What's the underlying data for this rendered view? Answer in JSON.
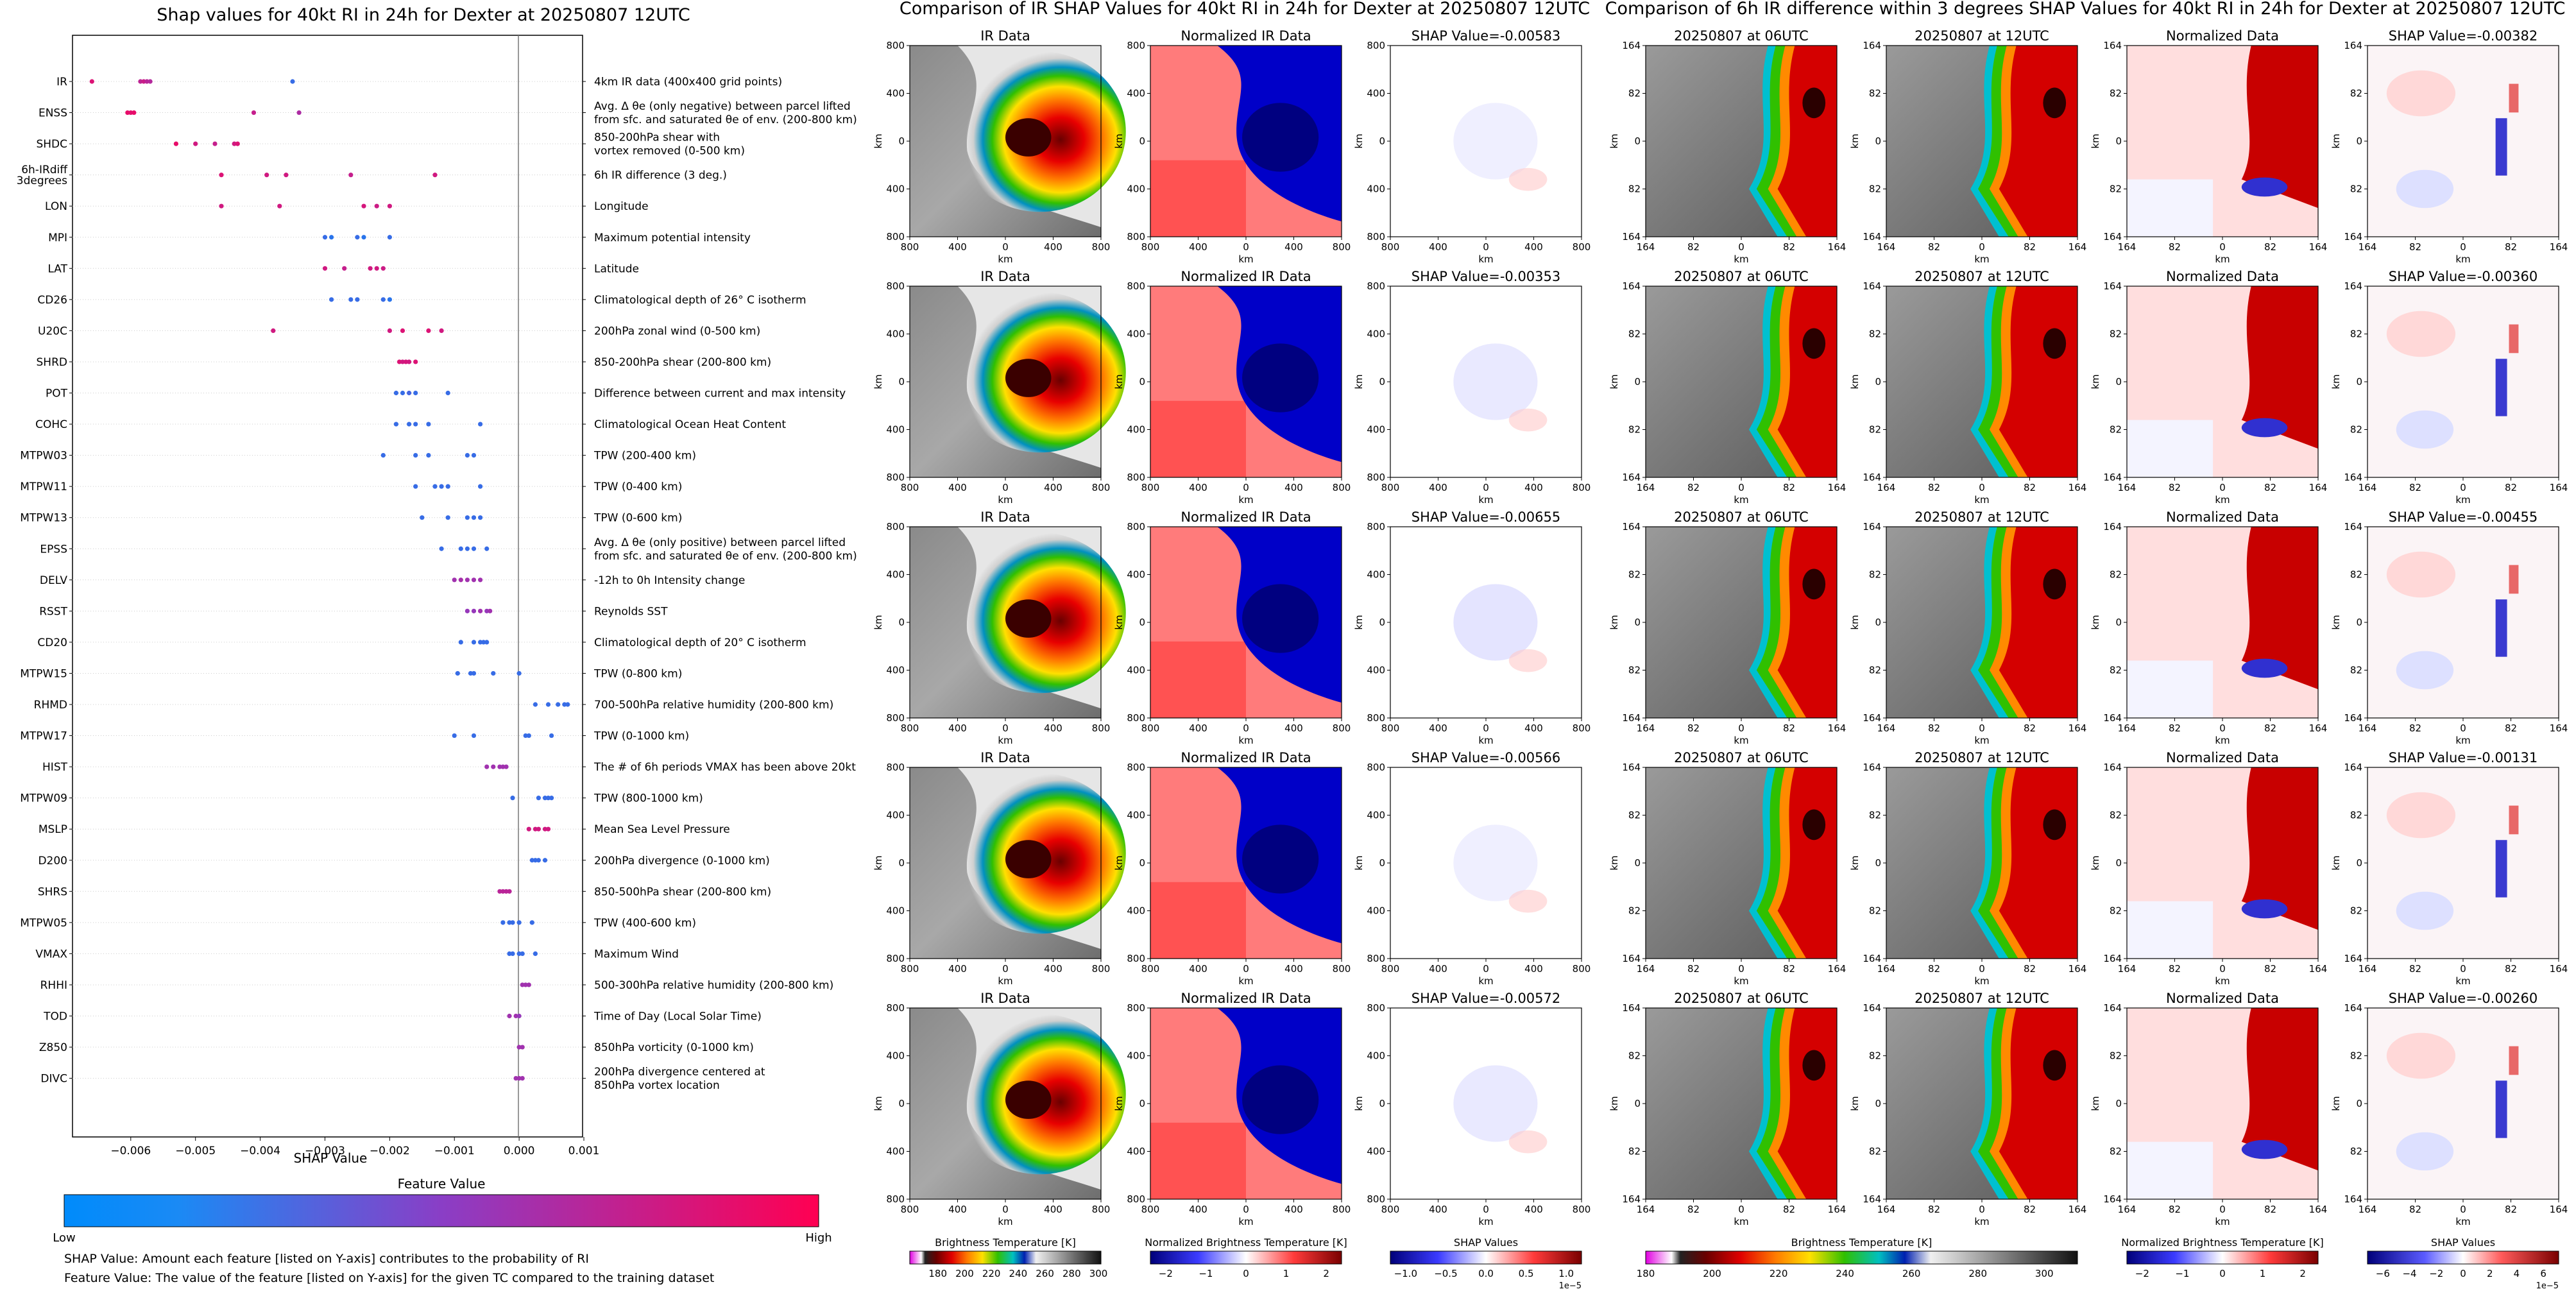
{
  "shap": {
    "title": "Shap values for 40kt RI in 24h for Dexter at 20250807 12UTC",
    "xlabel": "SHAP Value",
    "ticks": [
      "−0.006",
      "−0.005",
      "−0.004",
      "−0.003",
      "−0.002",
      "−0.001",
      "0.000",
      "0.001"
    ],
    "features": [
      {
        "name": "IR",
        "desc": "4km IR data (400x400 grid points)",
        "pts": [
          [
            -0.0066,
            0.85
          ],
          [
            -0.00585,
            0.72
          ],
          [
            -0.0058,
            0.77
          ],
          [
            -0.00575,
            0.7
          ],
          [
            -0.0057,
            0.68
          ],
          [
            -0.0035,
            0.2
          ]
        ]
      },
      {
        "name": "ENSS",
        "desc": "Avg. Δ θe (only negative) between parcel lifted\nfrom sfc. and saturated θe of env. (200-800 km)",
        "pts": [
          [
            -0.00605,
            0.9
          ],
          [
            -0.006,
            0.88
          ],
          [
            -0.00595,
            0.9
          ],
          [
            -0.0041,
            0.75
          ],
          [
            -0.0034,
            0.65
          ]
        ]
      },
      {
        "name": "SHDC",
        "desc": "850-200hPa shear with\nvortex removed (0-500 km)",
        "pts": [
          [
            -0.0053,
            0.9
          ],
          [
            -0.005,
            0.8
          ],
          [
            -0.0047,
            0.75
          ],
          [
            -0.0044,
            0.8
          ],
          [
            -0.00435,
            0.85
          ]
        ]
      },
      {
        "name": "6h-IRdiff\n3degrees",
        "desc": "6h IR difference (3 deg.)",
        "pts": [
          [
            -0.0046,
            0.85
          ],
          [
            -0.0039,
            0.8
          ],
          [
            -0.0036,
            0.8
          ],
          [
            -0.0026,
            0.75
          ],
          [
            -0.0013,
            0.8
          ]
        ]
      },
      {
        "name": "LON",
        "desc": "Longitude",
        "pts": [
          [
            -0.0046,
            0.8
          ],
          [
            -0.0037,
            0.8
          ],
          [
            -0.0024,
            0.82
          ],
          [
            -0.0022,
            0.78
          ],
          [
            -0.002,
            0.8
          ]
        ]
      },
      {
        "name": "MPI",
        "desc": "Maximum potential intensity",
        "pts": [
          [
            -0.003,
            0.2
          ],
          [
            -0.0029,
            0.15
          ],
          [
            -0.0025,
            0.2
          ],
          [
            -0.0024,
            0.15
          ],
          [
            -0.002,
            0.2
          ]
        ]
      },
      {
        "name": "LAT",
        "desc": "Latitude",
        "pts": [
          [
            -0.003,
            0.8
          ],
          [
            -0.0027,
            0.75
          ],
          [
            -0.0023,
            0.8
          ],
          [
            -0.0022,
            0.8
          ],
          [
            -0.0021,
            0.78
          ]
        ]
      },
      {
        "name": "CD26",
        "desc": "Climatological depth of 26° C isotherm",
        "pts": [
          [
            -0.0029,
            0.2
          ],
          [
            -0.0026,
            0.2
          ],
          [
            -0.0025,
            0.2
          ],
          [
            -0.0021,
            0.2
          ],
          [
            -0.002,
            0.15
          ]
        ]
      },
      {
        "name": "U20C",
        "desc": "200hPa zonal wind (0-500 km)",
        "pts": [
          [
            -0.0038,
            0.8
          ],
          [
            -0.002,
            0.8
          ],
          [
            -0.0018,
            0.85
          ],
          [
            -0.0014,
            0.85
          ],
          [
            -0.0012,
            0.8
          ]
        ]
      },
      {
        "name": "SHRD",
        "desc": "850-200hPa shear (200-800 km)",
        "pts": [
          [
            -0.00185,
            0.85
          ],
          [
            -0.0018,
            0.8
          ],
          [
            -0.00175,
            0.82
          ],
          [
            -0.0017,
            0.8
          ],
          [
            -0.0016,
            0.85
          ]
        ]
      },
      {
        "name": "POT",
        "desc": "Difference between current and max intensity",
        "pts": [
          [
            -0.0019,
            0.2
          ],
          [
            -0.0018,
            0.2
          ],
          [
            -0.0017,
            0.25
          ],
          [
            -0.0016,
            0.2
          ],
          [
            -0.0011,
            0.2
          ]
        ]
      },
      {
        "name": "COHC",
        "desc": "Climatological Ocean Heat Content",
        "pts": [
          [
            -0.0019,
            0.2
          ],
          [
            -0.0017,
            0.2
          ],
          [
            -0.0016,
            0.2
          ],
          [
            -0.0014,
            0.2
          ],
          [
            -0.0006,
            0.2
          ]
        ]
      },
      {
        "name": "MTPW03",
        "desc": "TPW (200-400 km)",
        "pts": [
          [
            -0.0021,
            0.2
          ],
          [
            -0.0016,
            0.2
          ],
          [
            -0.0014,
            0.2
          ],
          [
            -0.0008,
            0.2
          ],
          [
            -0.0007,
            0.2
          ]
        ]
      },
      {
        "name": "MTPW11",
        "desc": "TPW (0-400 km)",
        "pts": [
          [
            -0.0016,
            0.2
          ],
          [
            -0.0013,
            0.2
          ],
          [
            -0.0012,
            0.2
          ],
          [
            -0.0011,
            0.2
          ],
          [
            -0.0006,
            0.2
          ]
        ]
      },
      {
        "name": "MTPW13",
        "desc": "TPW (0-600 km)",
        "pts": [
          [
            -0.0015,
            0.2
          ],
          [
            -0.0011,
            0.2
          ],
          [
            -0.0008,
            0.2
          ],
          [
            -0.0007,
            0.2
          ],
          [
            -0.0006,
            0.2
          ]
        ]
      },
      {
        "name": "EPSS",
        "desc": "Avg. Δ θe (only positive) between parcel lifted\nfrom sfc. and saturated θe of env. (200-800 km)",
        "pts": [
          [
            -0.0012,
            0.2
          ],
          [
            -0.0009,
            0.2
          ],
          [
            -0.0008,
            0.2
          ],
          [
            -0.0007,
            0.2
          ],
          [
            -0.0005,
            0.2
          ]
        ]
      },
      {
        "name": "DELV",
        "desc": "-12h to 0h Intensity change",
        "pts": [
          [
            -0.001,
            0.6
          ],
          [
            -0.0009,
            0.62
          ],
          [
            -0.0008,
            0.6
          ],
          [
            -0.0007,
            0.6
          ],
          [
            -0.0006,
            0.6
          ]
        ]
      },
      {
        "name": "RSST",
        "desc": "Reynolds SST",
        "pts": [
          [
            -0.0008,
            0.55
          ],
          [
            -0.0007,
            0.55
          ],
          [
            -0.0006,
            0.6
          ],
          [
            -0.0005,
            0.55
          ],
          [
            -0.00045,
            0.6
          ]
        ]
      },
      {
        "name": "CD20",
        "desc": "Climatological depth of 20° C isotherm",
        "pts": [
          [
            -0.0009,
            0.2
          ],
          [
            -0.0007,
            0.2
          ],
          [
            -0.0006,
            0.2
          ],
          [
            -0.00055,
            0.2
          ],
          [
            -0.0005,
            0.2
          ]
        ]
      },
      {
        "name": "MTPW15",
        "desc": "TPW (0-800 km)",
        "pts": [
          [
            -0.00095,
            0.2
          ],
          [
            -0.00075,
            0.2
          ],
          [
            -0.0007,
            0.2
          ],
          [
            -0.0004,
            0.2
          ],
          [
            0.0,
            0.2
          ]
        ]
      },
      {
        "name": "RHMD",
        "desc": "700-500hPa relative humidity (200-800 km)",
        "pts": [
          [
            0.00025,
            0.2
          ],
          [
            0.00045,
            0.2
          ],
          [
            0.0006,
            0.2
          ],
          [
            0.0007,
            0.2
          ],
          [
            0.00075,
            0.2
          ]
        ]
      },
      {
        "name": "MTPW17",
        "desc": "TPW (0-1000 km)",
        "pts": [
          [
            -0.001,
            0.2
          ],
          [
            -0.0007,
            0.2
          ],
          [
            0.0001,
            0.2
          ],
          [
            0.00015,
            0.2
          ],
          [
            0.0005,
            0.2
          ]
        ]
      },
      {
        "name": "HIST",
        "desc": "The # of 6h periods VMAX has been above 20kt",
        "pts": [
          [
            -0.0005,
            0.6
          ],
          [
            -0.0004,
            0.6
          ],
          [
            -0.0003,
            0.6
          ],
          [
            -0.00025,
            0.6
          ],
          [
            -0.0002,
            0.6
          ]
        ]
      },
      {
        "name": "MTPW09",
        "desc": "TPW (800-1000 km)",
        "pts": [
          [
            -0.0001,
            0.2
          ],
          [
            0.0003,
            0.2
          ],
          [
            0.0004,
            0.2
          ],
          [
            0.00045,
            0.2
          ],
          [
            0.0005,
            0.2
          ]
        ]
      },
      {
        "name": "MSLP",
        "desc": "Mean Sea Level Pressure",
        "pts": [
          [
            0.00015,
            0.8
          ],
          [
            0.00025,
            0.8
          ],
          [
            0.0003,
            0.8
          ],
          [
            0.0004,
            0.8
          ],
          [
            0.00045,
            0.8
          ]
        ]
      },
      {
        "name": "D200",
        "desc": "200hPa divergence (0-1000 km)",
        "pts": [
          [
            0.0002,
            0.2
          ],
          [
            0.00025,
            0.2
          ],
          [
            0.0003,
            0.2
          ],
          [
            0.0004,
            0.2
          ]
        ]
      },
      {
        "name": "SHRS",
        "desc": "850-500hPa shear (200-800 km)",
        "pts": [
          [
            -0.0003,
            0.7
          ],
          [
            -0.00025,
            0.7
          ],
          [
            -0.0002,
            0.7
          ],
          [
            -0.00015,
            0.7
          ]
        ]
      },
      {
        "name": "MTPW05",
        "desc": "TPW (400-600 km)",
        "pts": [
          [
            -0.00025,
            0.2
          ],
          [
            -0.00015,
            0.2
          ],
          [
            -0.0001,
            0.2
          ],
          [
            0.0,
            0.2
          ],
          [
            0.0002,
            0.2
          ]
        ]
      },
      {
        "name": "VMAX",
        "desc": "Maximum Wind",
        "pts": [
          [
            -0.00015,
            0.2
          ],
          [
            -0.0001,
            0.2
          ],
          [
            0.0,
            0.2
          ],
          [
            5e-05,
            0.2
          ],
          [
            0.00025,
            0.2
          ]
        ]
      },
      {
        "name": "RHHI",
        "desc": "500-300hPa relative humidity (200-800 km)",
        "pts": [
          [
            5e-05,
            0.6
          ],
          [
            0.0001,
            0.6
          ],
          [
            0.00015,
            0.6
          ]
        ]
      },
      {
        "name": "TOD",
        "desc": "Time of Day (Local Solar Time)",
        "pts": [
          [
            -0.00015,
            0.6
          ],
          [
            -5e-05,
            0.6
          ],
          [
            0.0,
            0.55
          ]
        ]
      },
      {
        "name": "Z850",
        "desc": "850hPa vorticity (0-1000 km)",
        "pts": [
          [
            0.0,
            0.6
          ],
          [
            5e-05,
            0.6
          ]
        ]
      },
      {
        "name": "DIVC",
        "desc": "200hPa divergence centered at\n850hPa vortex location",
        "pts": [
          [
            -5e-05,
            0.6
          ],
          [
            0.0,
            0.6
          ],
          [
            5e-05,
            0.6
          ]
        ]
      }
    ],
    "colorbar_title": "Feature Value",
    "low": "Low",
    "high": "High",
    "note1": "SHAP Value: Amount each feature [listed on Y-axis] contributes to the probability of RI",
    "note2": "Feature Value: The value of the feature [listed on Y-axis] for the given TC compared to the training dataset"
  },
  "ir_panel": {
    "title": "Comparison of IR SHAP Values for 40kt RI in 24h for Dexter at 20250807 12UTC",
    "col_titles": [
      "IR Data",
      "Normalized IR Data",
      "SHAP Value=-0.00583"
    ],
    "shap_titles": [
      "SHAP Value=-0.00583",
      "SHAP Value=-0.00353",
      "SHAP Value=-0.00655",
      "SHAP Value=-0.00566",
      "SHAP Value=-0.00572"
    ],
    "ir_title": "IR Data",
    "norm_title": "Normalized IR Data",
    "ticks": [
      "800",
      "400",
      "0",
      "400",
      "800"
    ],
    "axis": "km",
    "cbar": [
      {
        "label": "Brightness Temperature [K]",
        "ticks": [
          "180",
          "200",
          "220",
          "240",
          "260",
          "280",
          "300"
        ]
      },
      {
        "label": "Normalized Brightness Temperature [K]",
        "ticks": [
          "−2",
          "−1",
          "0",
          "1",
          "2"
        ]
      },
      {
        "label": "SHAP Values",
        "ticks": [
          "−1.0",
          "−0.5",
          "0.0",
          "0.5",
          "1.0"
        ],
        "exp": "1e−5"
      }
    ]
  },
  "diff_panel": {
    "title": "Comparison of 6h IR difference within 3 degrees SHAP Values for 40kt RI in 24h for Dexter at 20250807 12UTC",
    "t06": "20250807 at 06UTC",
    "t12": "20250807 at 12UTC",
    "norm": "Normalized Data",
    "shap_titles": [
      "SHAP Value=-0.00382",
      "SHAP Value=-0.00360",
      "SHAP Value=-0.00455",
      "SHAP Value=-0.00131",
      "SHAP Value=-0.00260"
    ],
    "ticks": [
      "164",
      "82",
      "0",
      "82",
      "164"
    ],
    "axis": "km",
    "cbar": [
      {
        "label": "Brightness Temperature [K]",
        "ticks": [
          "180",
          "200",
          "220",
          "240",
          "260",
          "280",
          "300"
        ]
      },
      {
        "label": "Normalized Brightness Temperature [K]",
        "ticks": [
          "−2",
          "−1",
          "0",
          "1",
          "2"
        ]
      },
      {
        "label": "SHAP Values",
        "ticks": [
          "−6",
          "−4",
          "−2",
          "0",
          "2",
          "4",
          "6"
        ],
        "exp": "1e−5"
      }
    ]
  },
  "chart_data": {
    "type": "scatter",
    "title": "Shap values for 40kt RI in 24h for Dexter at 20250807 12UTC",
    "xlabel": "SHAP Value",
    "xlim": [
      -0.0069,
      0.001
    ],
    "legend": "colorbar bottom: Feature Value Low-High"
  }
}
